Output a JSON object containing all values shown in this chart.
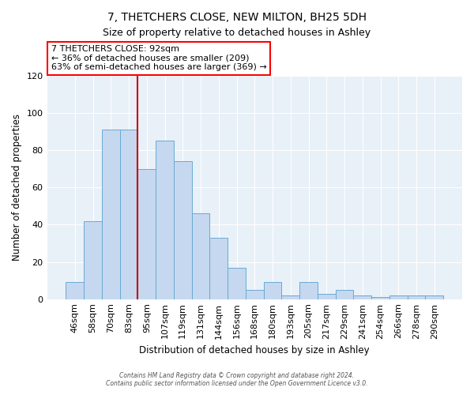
{
  "title": "7, THETCHERS CLOSE, NEW MILTON, BH25 5DH",
  "subtitle": "Size of property relative to detached houses in Ashley",
  "xlabel": "Distribution of detached houses by size in Ashley",
  "ylabel": "Number of detached properties",
  "bar_color": "#c5d8ef",
  "bar_edge_color": "#6aaad4",
  "vline_color": "#cc0000",
  "annotation_title": "7 THETCHERS CLOSE: 92sqm",
  "annotation_line1": "← 36% of detached houses are smaller (209)",
  "annotation_line2": "63% of semi-detached houses are larger (369) →",
  "categories": [
    "46sqm",
    "58sqm",
    "70sqm",
    "83sqm",
    "95sqm",
    "107sqm",
    "119sqm",
    "131sqm",
    "144sqm",
    "156sqm",
    "168sqm",
    "180sqm",
    "193sqm",
    "205sqm",
    "217sqm",
    "229sqm",
    "241sqm",
    "254sqm",
    "266sqm",
    "278sqm",
    "290sqm"
  ],
  "values": [
    9,
    42,
    91,
    91,
    70,
    85,
    74,
    46,
    33,
    17,
    5,
    9,
    2,
    9,
    3,
    5,
    2,
    1,
    2,
    2,
    2
  ],
  "ylim": [
    0,
    120
  ],
  "yticks": [
    0,
    20,
    40,
    60,
    80,
    100,
    120
  ],
  "footer1": "Contains HM Land Registry data © Crown copyright and database right 2024.",
  "footer2": "Contains public sector information licensed under the Open Government Licence v3.0.",
  "bg_color": "#e8f0f8"
}
